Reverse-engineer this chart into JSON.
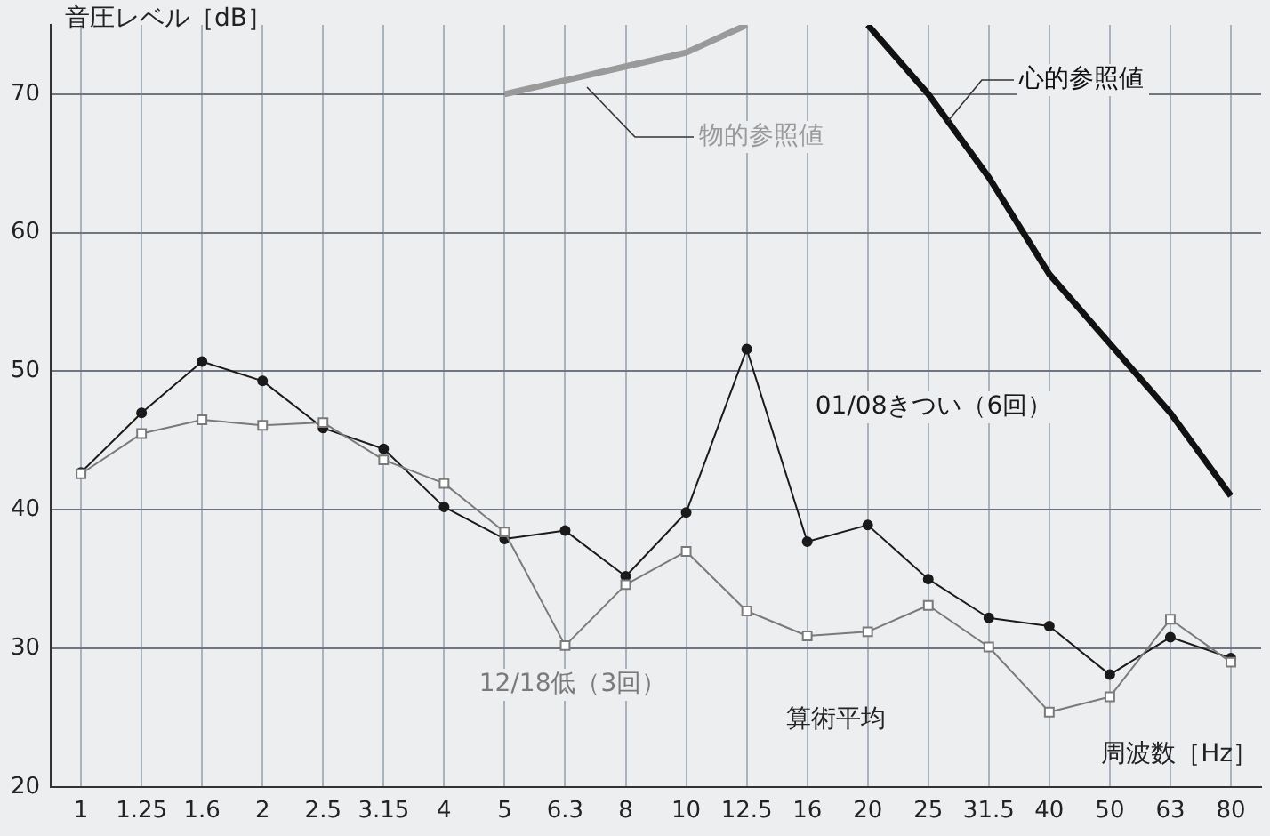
{
  "chart_data": {
    "type": "line",
    "ylabel": "音圧レベル［dB］",
    "xlabel": "周波数［Hz］",
    "categories": [
      "1",
      "1.25",
      "1.6",
      "2",
      "2.5",
      "3.15",
      "4",
      "5",
      "6.3",
      "8",
      "10",
      "12.5",
      "16",
      "20",
      "25",
      "31.5",
      "40",
      "50",
      "63",
      "80"
    ],
    "ylim": [
      20,
      75
    ],
    "yticks": [
      20,
      30,
      40,
      50,
      60,
      70
    ],
    "grid": true,
    "legend": false,
    "annotations": [
      "算術平均"
    ],
    "series": [
      {
        "name": "01/08きつい（6回）",
        "color": "#1a1a1a",
        "marker": "circle",
        "values": [
          42.7,
          47.0,
          50.7,
          49.3,
          45.9,
          44.4,
          40.2,
          37.9,
          38.5,
          35.2,
          39.8,
          51.6,
          37.7,
          38.9,
          35.0,
          32.2,
          31.6,
          28.1,
          30.8,
          29.3
        ]
      },
      {
        "name": "12/18低（3回）",
        "color": "#7a7a7a",
        "marker": "square",
        "values": [
          42.6,
          45.5,
          46.5,
          46.1,
          46.3,
          43.6,
          41.9,
          38.4,
          30.2,
          34.6,
          37.0,
          32.7,
          30.9,
          31.2,
          33.1,
          30.1,
          25.4,
          26.5,
          32.1,
          29.0
        ]
      },
      {
        "name": "物的参照値",
        "color": "#9a9a9a",
        "marker": "none",
        "values": [
          null,
          null,
          null,
          null,
          null,
          null,
          null,
          70,
          71,
          72,
          73,
          75,
          null,
          null,
          null,
          null,
          null,
          null,
          null,
          null
        ]
      },
      {
        "name": "心的参照値",
        "color": "#111111",
        "marker": "none",
        "values": [
          null,
          null,
          null,
          null,
          null,
          null,
          null,
          null,
          null,
          null,
          null,
          null,
          null,
          75,
          70,
          64,
          57,
          52,
          47,
          41
        ]
      }
    ]
  }
}
